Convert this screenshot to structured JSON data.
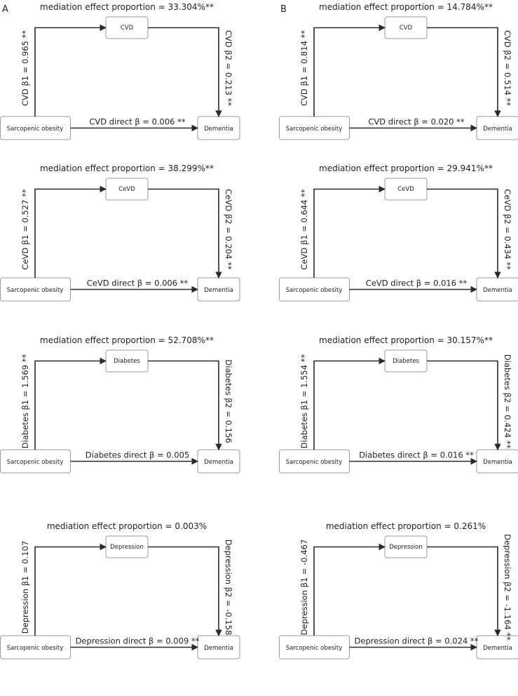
{
  "panels": [
    {
      "label": "A",
      "diagrams": [
        {
          "mediator": "CVD",
          "exposure": "Sarcopenic obesity",
          "outcome": "Dementia",
          "proportion": "mediation effect proportion = 33.304%**",
          "beta1": "CVD β1 = 0.965 **",
          "beta2": "CVD β2 = 0.213 **",
          "direct": "CVD direct β =  0.006 **"
        },
        {
          "mediator": "CeVD",
          "exposure": "Sarcopenic obesity",
          "outcome": "Dementia",
          "proportion": "mediation effect proportion = 38.299%**",
          "beta1": "CeVD β1 = 0.527 **",
          "beta2": "CeVD β2 = 0.204 **",
          "direct": "CeVD direct β =  0.006 **"
        },
        {
          "mediator": "Diabetes",
          "exposure": "Sarcopenic obesity",
          "outcome": "Dementia",
          "proportion": "mediation effect proportion = 52.708%**",
          "beta1": "Diabetes β1 = 1.569 **",
          "beta2": "Diabetes β2 = 0.156",
          "direct": "Diabetes direct β =  0.005"
        },
        {
          "mediator": "Depression",
          "exposure": "Sarcopenic obesity",
          "outcome": "Dementia",
          "proportion": "mediation effect proportion = 0.003%",
          "beta1": "Depression β1 = 0.107",
          "beta2": "Depression β2 = -0.158",
          "direct": "Depression direct β = 0.009 **"
        }
      ]
    },
    {
      "label": "B",
      "diagrams": [
        {
          "mediator": "CVD",
          "exposure": "Sarcopenic obesity",
          "outcome": "Dementia",
          "proportion": "mediation effect proportion = 14.784%**",
          "beta1": "CVD β1 = 0.814 **",
          "beta2": "CVD β2 = 0.514 **",
          "direct": "CVD direct β =  0.020 **"
        },
        {
          "mediator": "CeVD",
          "exposure": "Sarcopenic obesity",
          "outcome": "Dementia",
          "proportion": "mediation effect proportion = 29.941%**",
          "beta1": "CeVD β1 = 0.644 **",
          "beta2": "CeVD β2 = 0.434 **",
          "direct": "CeVD direct β = 0.016 **"
        },
        {
          "mediator": "Diabetes",
          "exposure": "Sarcopenic obesity",
          "outcome": "Dementia",
          "proportion": "mediation effect proportion = 30.157%**",
          "beta1": "Diabetes β1 = 1.554 **",
          "beta2": "Diabetes β2 = 0.424 **",
          "direct": "Diabetes direct β = 0.016 **"
        },
        {
          "mediator": "Depression",
          "exposure": "Sarcopenic obesity",
          "outcome": "Dementia",
          "proportion": "mediation effect proportion = 0.261%",
          "beta1": "Depression β1 = -0.467",
          "beta2": "Depression β2 = -1.164 **",
          "direct": "Depression direct β = 0.024 **"
        }
      ]
    }
  ]
}
